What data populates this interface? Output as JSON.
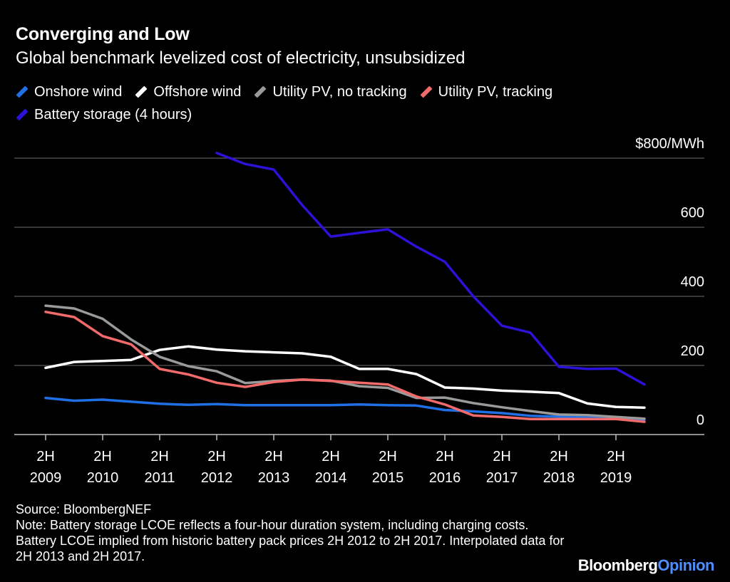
{
  "header": {
    "title": "Converging and Low",
    "subtitle": "Global benchmark levelized cost of electricity, unsubsidized"
  },
  "footer": {
    "source": "Source: BloombergNEF",
    "note": "Note: Battery storage LCOE reflects a four-hour duration system, including charging costs. Battery LCOE implied from historic battery pack prices 2H 2012 to 2H 2017. Interpolated data for 2H 2013 and 2H 2017.",
    "logo_main": "Bloomberg",
    "logo_accent": "Opinion"
  },
  "chart_data": {
    "type": "line",
    "title": "Converging and Low",
    "subtitle": "Global benchmark levelized cost of electricity, unsubsidized",
    "x": [
      "2H 2009",
      "1H 2010",
      "2H 2010",
      "1H 2011",
      "2H 2011",
      "1H 2012",
      "2H 2012",
      "1H 2013",
      "2H 2013",
      "1H 2014",
      "2H 2014",
      "1H 2015",
      "2H 2015",
      "1H 2016",
      "2H 2016",
      "1H 2017",
      "2H 2017",
      "1H 2018",
      "2H 2018",
      "1H 2019",
      "2H 2019",
      "1H 2020"
    ],
    "x_ticks": [
      {
        "index": 0,
        "top": "2H",
        "bottom": "2009"
      },
      {
        "index": 2,
        "top": "2H",
        "bottom": "2010"
      },
      {
        "index": 4,
        "top": "2H",
        "bottom": "2011"
      },
      {
        "index": 6,
        "top": "2H",
        "bottom": "2012"
      },
      {
        "index": 8,
        "top": "2H",
        "bottom": "2013"
      },
      {
        "index": 10,
        "top": "2H",
        "bottom": "2014"
      },
      {
        "index": 12,
        "top": "2H",
        "bottom": "2015"
      },
      {
        "index": 14,
        "top": "2H",
        "bottom": "2016"
      },
      {
        "index": 16,
        "top": "2H",
        "bottom": "2017"
      },
      {
        "index": 18,
        "top": "2H",
        "bottom": "2018"
      },
      {
        "index": 20,
        "top": "2H",
        "bottom": "2019"
      }
    ],
    "y_ticks": [
      {
        "value": 0,
        "label": "0"
      },
      {
        "value": 200,
        "label": "200"
      },
      {
        "value": 400,
        "label": "400"
      },
      {
        "value": 600,
        "label": "600"
      },
      {
        "value": 800,
        "label": "$800/MWh"
      }
    ],
    "ylim": [
      0,
      800
    ],
    "grid": true,
    "legend_position": "top-left",
    "series": [
      {
        "name": "Onshore wind",
        "color": "#1f6fe5",
        "values": [
          106,
          98,
          101,
          95,
          89,
          86,
          88,
          85,
          85,
          85,
          85,
          87,
          85,
          84,
          71,
          67,
          62,
          54,
          52,
          50,
          47,
          43
        ]
      },
      {
        "name": "Offshore wind",
        "color": "#ffffff",
        "values": [
          193,
          210,
          213,
          216,
          245,
          255,
          246,
          241,
          238,
          235,
          225,
          190,
          190,
          175,
          136,
          133,
          127,
          124,
          120,
          90,
          80,
          78
        ]
      },
      {
        "name": "Utility PV, no tracking",
        "color": "#9a9a9a",
        "values": [
          373,
          365,
          335,
          275,
          225,
          198,
          183,
          149,
          155,
          159,
          156,
          140,
          135,
          106,
          107,
          91,
          79,
          68,
          58,
          56,
          51,
          46
        ]
      },
      {
        "name": "Utility PV, tracking",
        "color": "#f26b6b",
        "values": [
          355,
          340,
          285,
          261,
          190,
          174,
          150,
          138,
          152,
          159,
          155,
          150,
          145,
          110,
          87,
          55,
          51,
          45,
          45,
          45,
          45,
          37
        ]
      },
      {
        "name": "Battery storage (4 hours)",
        "color": "#2c12d8",
        "values": [
          null,
          null,
          null,
          null,
          null,
          null,
          815,
          783,
          767,
          664,
          573,
          584,
          594,
          544,
          500,
          400,
          315,
          295,
          196,
          190,
          191,
          145
        ]
      }
    ]
  }
}
